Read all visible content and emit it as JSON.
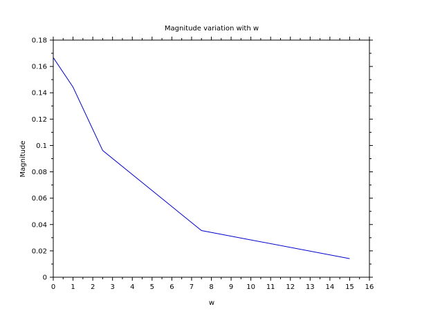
{
  "chart_data": {
    "type": "line",
    "title": "Magnitude variation with w",
    "xlabel": "w",
    "ylabel": "Magnitude",
    "xlim": [
      0,
      16
    ],
    "ylim": [
      0,
      0.18
    ],
    "xticks": [
      "0",
      "1",
      "2",
      "3",
      "4",
      "5",
      "6",
      "7",
      "8",
      "9",
      "10",
      "11",
      "12",
      "13",
      "14",
      "15",
      "16"
    ],
    "yticks": [
      "0",
      "0.02",
      "0.04",
      "0.06",
      "0.08",
      "0.1",
      "0.12",
      "0.14",
      "0.16",
      "0.18"
    ],
    "grid": false,
    "series": [
      {
        "color": "#0000cc",
        "x": [
          0,
          1,
          2.5,
          7.5,
          15
        ],
        "y": [
          0.1667,
          0.1443,
          0.0962,
          0.0354,
          0.0141
        ]
      }
    ]
  }
}
